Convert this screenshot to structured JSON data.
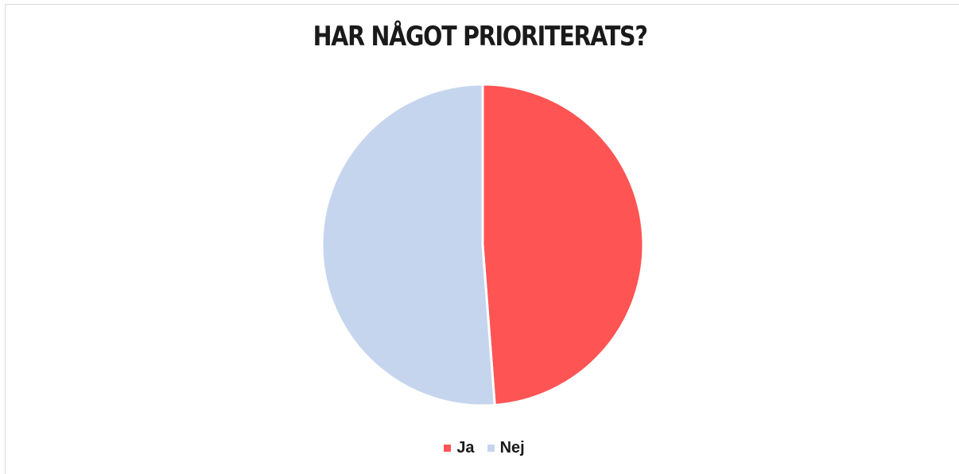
{
  "chart_data": {
    "type": "pie",
    "title": "HAR NÅGOT PRIORITERATS?",
    "slices": [
      {
        "label": "Ja",
        "value": 48.8,
        "color": "#ff5454"
      },
      {
        "label": "Nej",
        "value": 51.2,
        "color": "#c6d5ee"
      }
    ],
    "start_angle_deg": 0,
    "direction": "clockwise",
    "legend_position": "bottom",
    "slice_border_color": "#ffffff"
  }
}
